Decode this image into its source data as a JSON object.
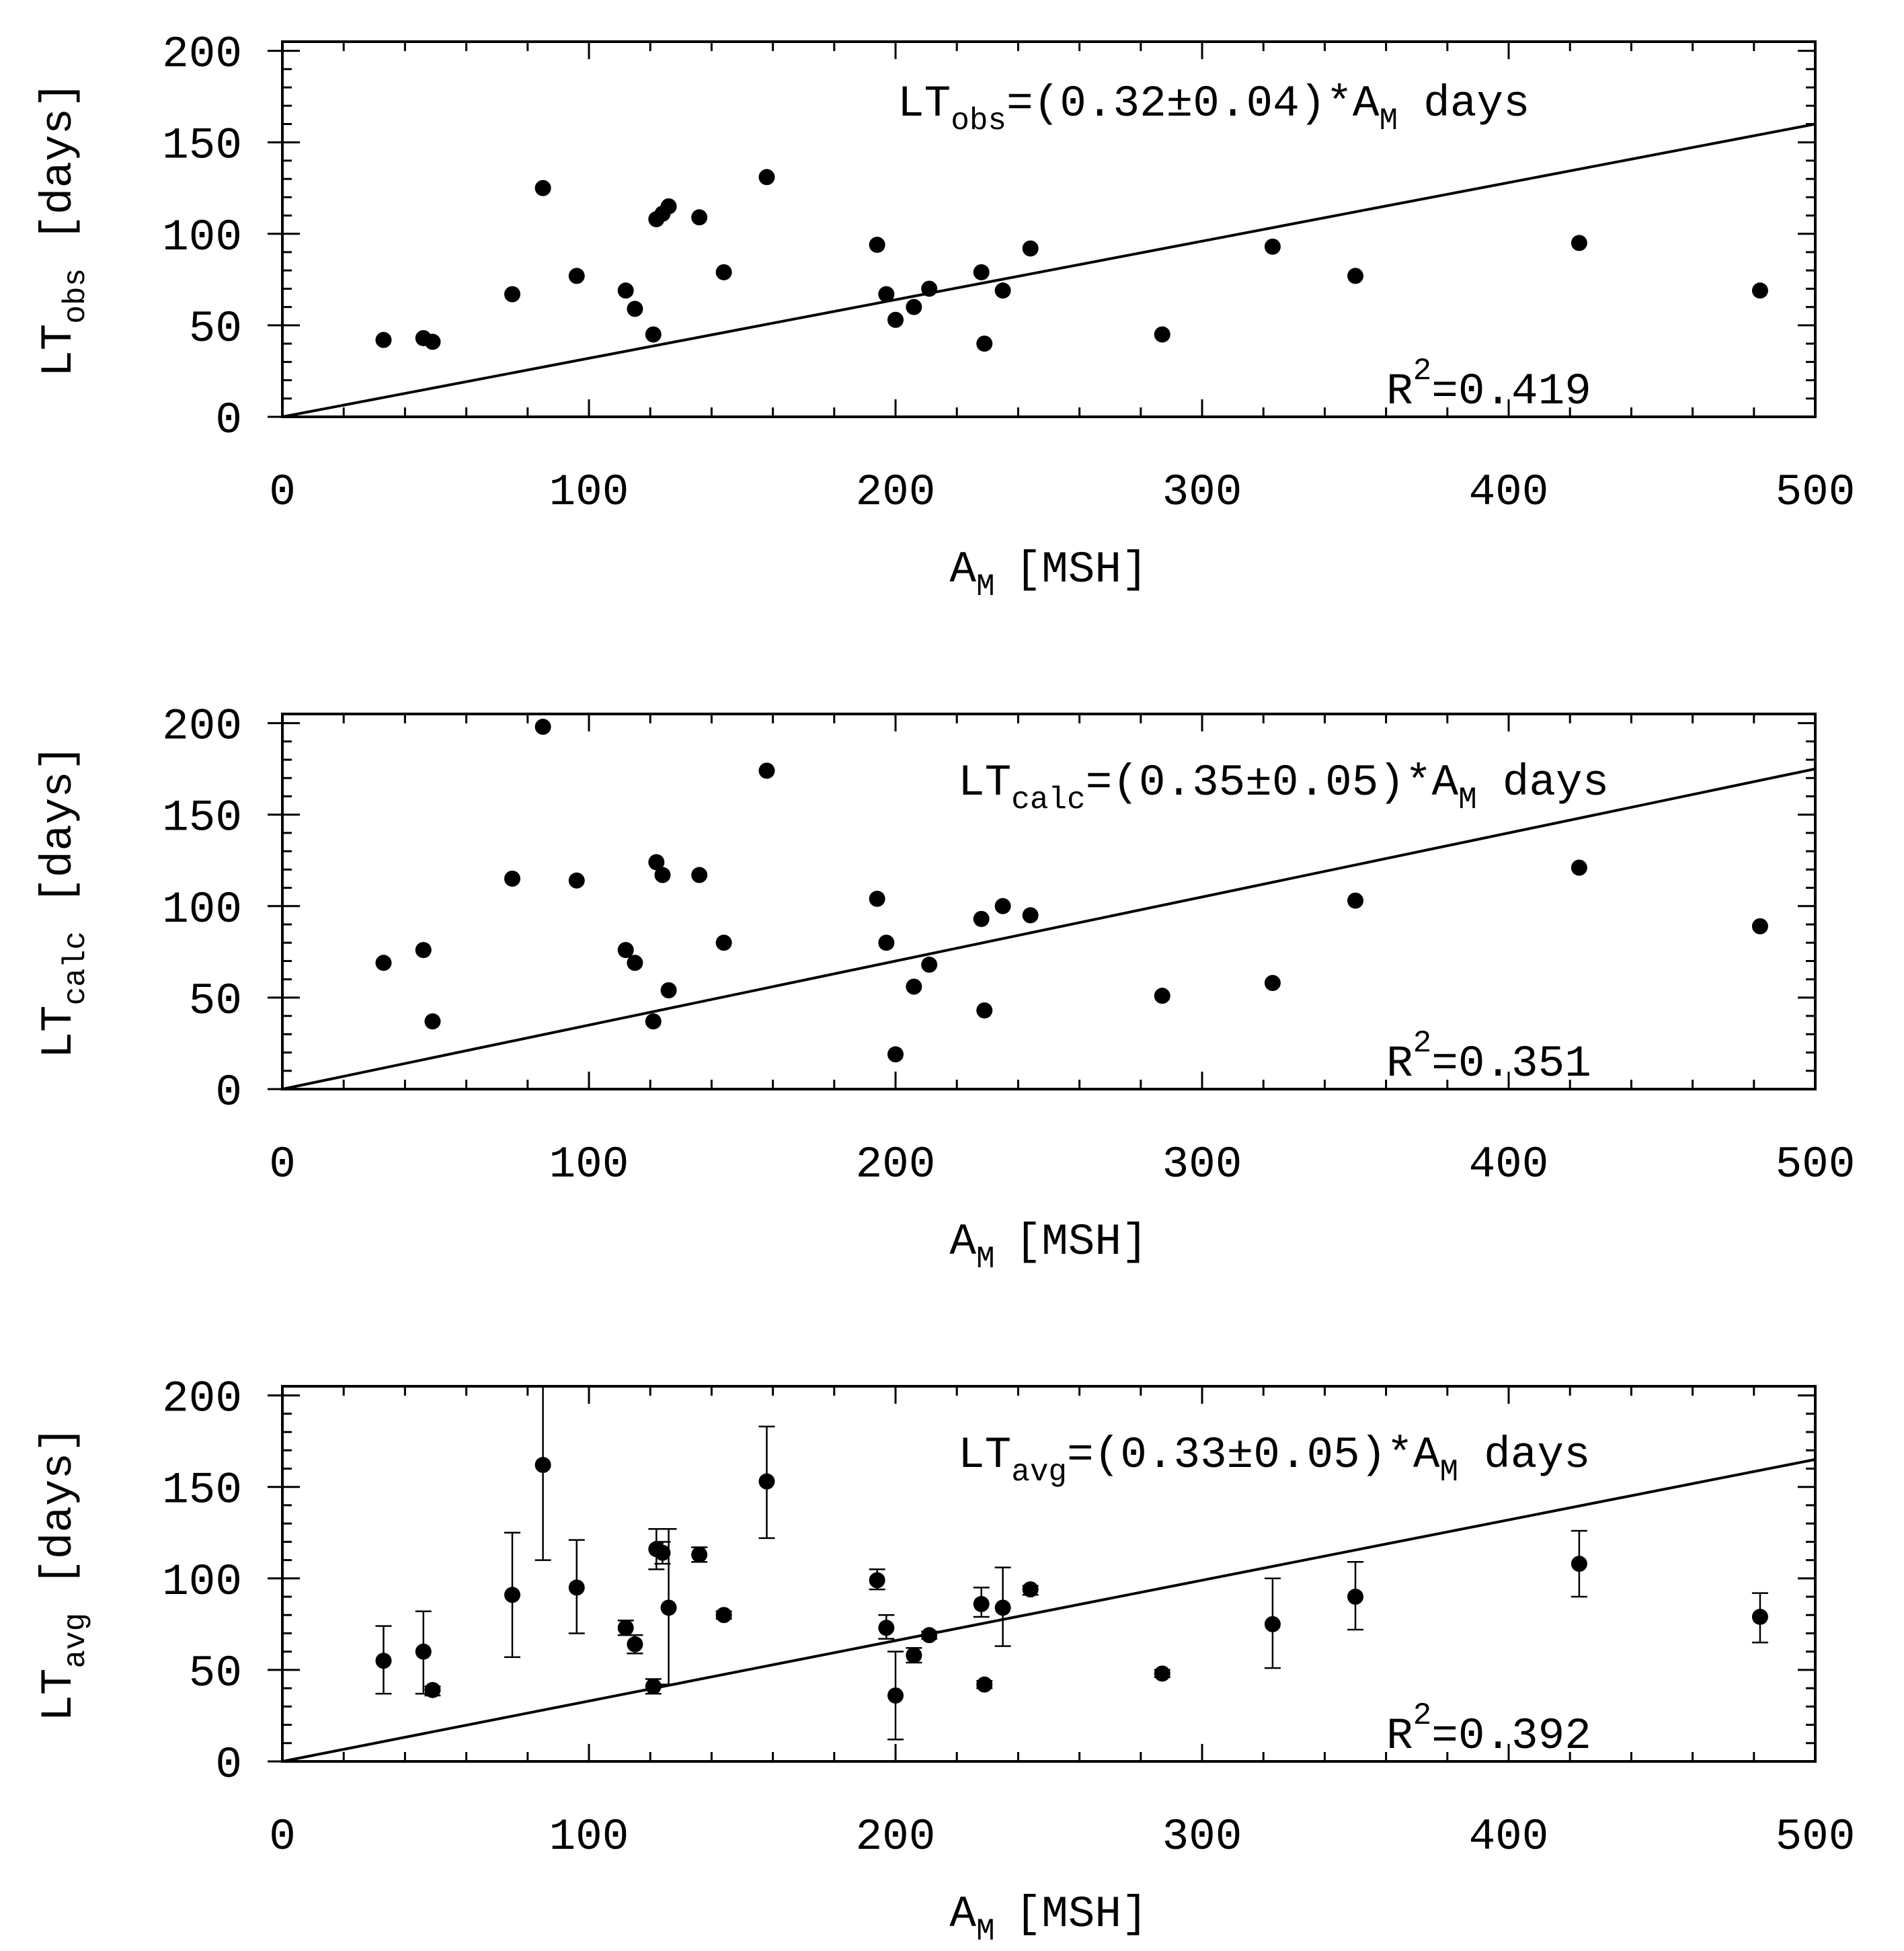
{
  "chart_data": [
    {
      "type": "scatter",
      "xlabel": "A",
      "xlabel_sub": "M",
      "xlabel_unit": "[MSH]",
      "ylabel": "LT",
      "ylabel_sub": "obs",
      "ylabel_unit": "[days]",
      "xlim": [
        0,
        500
      ],
      "ylim": [
        0,
        205
      ],
      "x_ticks": [
        0,
        100,
        200,
        300,
        400,
        500
      ],
      "y_ticks": [
        0,
        50,
        100,
        150,
        200
      ],
      "fit": {
        "slope": 0.32
      },
      "eq": {
        "lhs": "LT",
        "lhs_sub": "obs",
        "mid": "=(0.32±0.04)*A",
        "mid_sub": "M",
        "rhs": "days"
      },
      "r2": {
        "prefix": "R",
        "power": "2",
        "value": "=0.419"
      },
      "points": [
        [
          33,
          42
        ],
        [
          46,
          43
        ],
        [
          49,
          41
        ],
        [
          75,
          67
        ],
        [
          85,
          125
        ],
        [
          96,
          77
        ],
        [
          112,
          69
        ],
        [
          115,
          59
        ],
        [
          121,
          45
        ],
        [
          122,
          108
        ],
        [
          124,
          111
        ],
        [
          126,
          115
        ],
        [
          136,
          109
        ],
        [
          144,
          79
        ],
        [
          158,
          131
        ],
        [
          194,
          94
        ],
        [
          197,
          67
        ],
        [
          200,
          53
        ],
        [
          206,
          60
        ],
        [
          211,
          70
        ],
        [
          228,
          79
        ],
        [
          229,
          40
        ],
        [
          235,
          69
        ],
        [
          244,
          92
        ],
        [
          287,
          45
        ],
        [
          323,
          93
        ],
        [
          350,
          77
        ],
        [
          423,
          95
        ],
        [
          482,
          69
        ]
      ]
    },
    {
      "type": "scatter",
      "xlabel": "A",
      "xlabel_sub": "M",
      "xlabel_unit": "[MSH]",
      "ylabel": "LT",
      "ylabel_sub": "calc",
      "ylabel_unit": "[days]",
      "xlim": [
        0,
        500
      ],
      "ylim": [
        0,
        205
      ],
      "x_ticks": [
        0,
        100,
        200,
        300,
        400,
        500
      ],
      "y_ticks": [
        0,
        50,
        100,
        150,
        200
      ],
      "fit": {
        "slope": 0.35
      },
      "eq": {
        "lhs": "LT",
        "lhs_sub": "calc",
        "mid": "=(0.35±0.05)*A",
        "mid_sub": "M",
        "rhs": "days"
      },
      "r2": {
        "prefix": "R",
        "power": "2",
        "value": "=0.351"
      },
      "points": [
        [
          33,
          69
        ],
        [
          46,
          76
        ],
        [
          49,
          37
        ],
        [
          75,
          115
        ],
        [
          85,
          198
        ],
        [
          96,
          114
        ],
        [
          112,
          76
        ],
        [
          115,
          69
        ],
        [
          121,
          37
        ],
        [
          122,
          124
        ],
        [
          124,
          117
        ],
        [
          126,
          54
        ],
        [
          136,
          117
        ],
        [
          144,
          80
        ],
        [
          158,
          174
        ],
        [
          194,
          104
        ],
        [
          197,
          80
        ],
        [
          200,
          19
        ],
        [
          206,
          56
        ],
        [
          211,
          68
        ],
        [
          228,
          93
        ],
        [
          229,
          43
        ],
        [
          235,
          100
        ],
        [
          244,
          95
        ],
        [
          287,
          51
        ],
        [
          323,
          58
        ],
        [
          350,
          103
        ],
        [
          423,
          121
        ],
        [
          482,
          89
        ]
      ]
    },
    {
      "type": "scatter",
      "xlabel": "A",
      "xlabel_sub": "M",
      "xlabel_unit": "[MSH]",
      "ylabel": "LT",
      "ylabel_sub": "avg",
      "ylabel_unit": "[days]",
      "xlim": [
        0,
        500
      ],
      "ylim": [
        0,
        205
      ],
      "x_ticks": [
        0,
        100,
        200,
        300,
        400,
        500
      ],
      "y_ticks": [
        0,
        50,
        100,
        150,
        200
      ],
      "fit": {
        "slope": 0.33
      },
      "eq": {
        "lhs": "LT",
        "lhs_sub": "avg",
        "mid": "=(0.33±0.05)*A",
        "mid_sub": "M",
        "rhs": "days"
      },
      "r2": {
        "prefix": "R",
        "power": "2",
        "value": "=0.392"
      },
      "points": [
        [
          33,
          55,
          37,
          74
        ],
        [
          46,
          60,
          37,
          82
        ],
        [
          49,
          39,
          36,
          41
        ],
        [
          75,
          91,
          57,
          125
        ],
        [
          85,
          162,
          110,
          212
        ],
        [
          96,
          95,
          70,
          121
        ],
        [
          112,
          73,
          69,
          77
        ],
        [
          115,
          64,
          59,
          69
        ],
        [
          121,
          41,
          37,
          45
        ],
        [
          122,
          116,
          105,
          127
        ],
        [
          124,
          114,
          108,
          120
        ],
        [
          126,
          84,
          42,
          127
        ],
        [
          136,
          113,
          109,
          117
        ],
        [
          144,
          80,
          78,
          82
        ],
        [
          158,
          153,
          122,
          183
        ],
        [
          194,
          99,
          94,
          105
        ],
        [
          197,
          73,
          67,
          80
        ],
        [
          200,
          36,
          12,
          60
        ],
        [
          206,
          58,
          54,
          62
        ],
        [
          211,
          69,
          67,
          71
        ],
        [
          228,
          86,
          79,
          95
        ],
        [
          229,
          42,
          40,
          44
        ],
        [
          235,
          84,
          63,
          106
        ],
        [
          244,
          94,
          91,
          96
        ],
        [
          287,
          48,
          46,
          50
        ],
        [
          323,
          75,
          51,
          100
        ],
        [
          350,
          90,
          72,
          109
        ],
        [
          423,
          108,
          90,
          126
        ],
        [
          482,
          79,
          65,
          92
        ]
      ]
    }
  ]
}
